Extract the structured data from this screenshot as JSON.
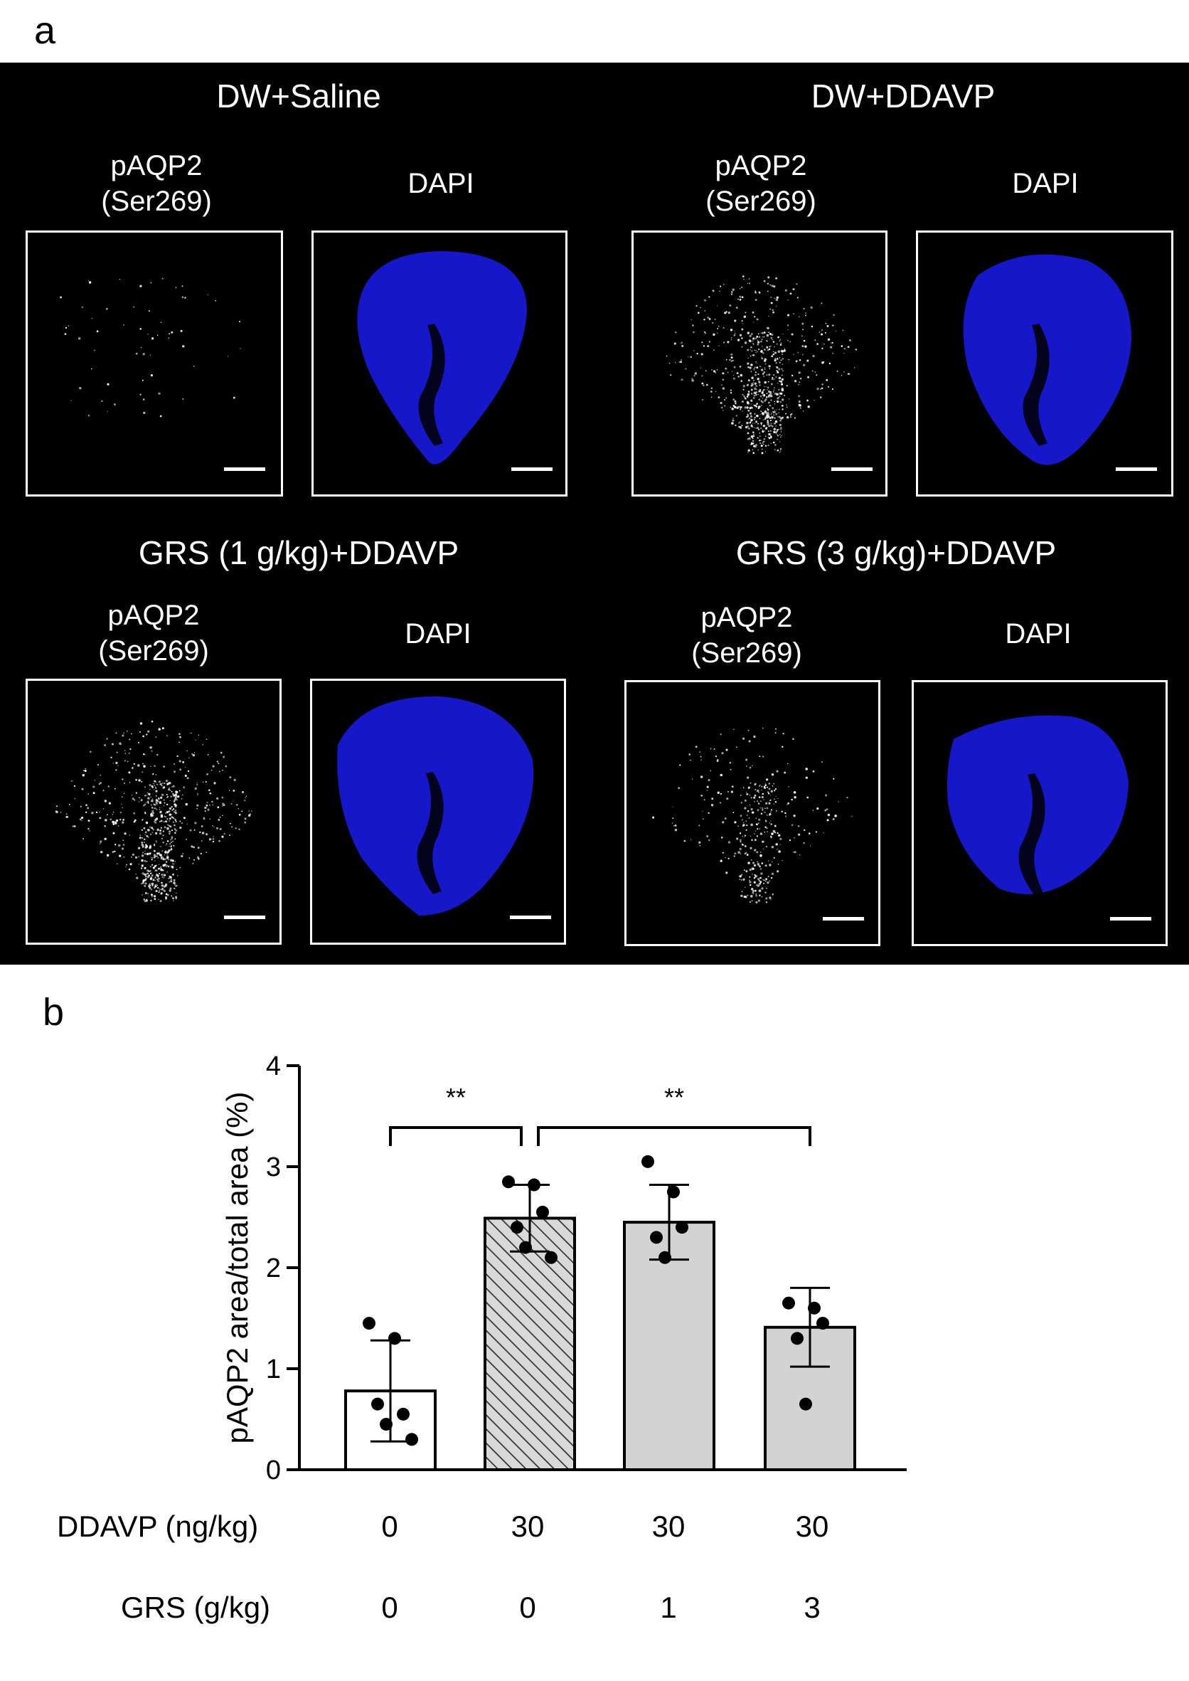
{
  "panel_a": {
    "letter": "a",
    "groups": [
      {
        "title": "DW+Saline",
        "left_label": "pAQP2\n(Ser269)",
        "right_label": "DAPI",
        "pattern": "sparse"
      },
      {
        "title": "DW+DDAVP",
        "left_label": "pAQP2\n(Ser269)",
        "right_label": "DAPI",
        "pattern": "dense"
      },
      {
        "title": "GRS (1 g/kg)+DDAVP",
        "left_label": "pAQP2\n(Ser269)",
        "right_label": "DAPI",
        "pattern": "dense"
      },
      {
        "title": "GRS (3 g/kg)+DDAVP",
        "left_label": "pAQP2\n(Ser269)",
        "right_label": "DAPI",
        "pattern": "medium"
      }
    ],
    "colors": {
      "background": "#000000",
      "dapi": "#1a1ae0",
      "signal": "#ffffff"
    }
  },
  "panel_b": {
    "letter": "b",
    "row_labels": {
      "ddavp": "DDAVP (ng/kg)",
      "grs": "GRS (g/kg)"
    },
    "ddavp_values": [
      "0",
      "30",
      "30",
      "30"
    ],
    "grs_values": [
      "0",
      "0",
      "1",
      "3"
    ]
  },
  "chart_data": {
    "type": "bar",
    "title": "",
    "xlabel": "",
    "ylabel": "pAQP2 area/total area (%)",
    "ylim": [
      0,
      4
    ],
    "yticks": [
      "0",
      "1",
      "2",
      "3",
      "4"
    ],
    "categories": [
      "DW+Saline",
      "DW+DDAVP",
      "GRS (1 g/kg)+DDAVP",
      "GRS (3 g/kg)+DDAVP"
    ],
    "values": [
      0.78,
      2.49,
      2.45,
      1.41
    ],
    "errors": [
      0.5,
      0.33,
      0.37,
      0.39
    ],
    "fills": [
      "#ffffff",
      "hatch",
      "#d3d3d3",
      "#d3d3d3"
    ],
    "points": [
      [
        1.45,
        1.3,
        0.55,
        0.65,
        0.45,
        0.3
      ],
      [
        2.85,
        2.82,
        2.55,
        2.4,
        2.2,
        2.1
      ],
      [
        3.05,
        2.75,
        2.4,
        2.3,
        2.1
      ],
      [
        1.65,
        1.6,
        1.45,
        1.3,
        0.65
      ]
    ],
    "significance": [
      {
        "from": 0,
        "to": 1,
        "label": "**"
      },
      {
        "from": 1,
        "to": 3,
        "label": "**"
      }
    ],
    "grid": false,
    "legend": "none"
  }
}
